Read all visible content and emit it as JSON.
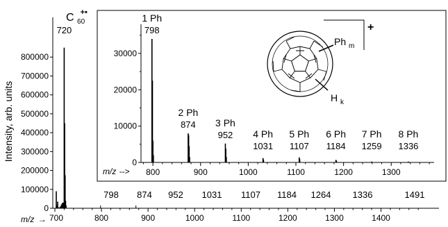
{
  "chart_data": [
    {
      "type": "bar",
      "name": "main",
      "ylabel": "Intensity, arb. units",
      "xlabel_prefix": "m/z",
      "xlabel_arrow": "→",
      "xlim": [
        700,
        1520
      ],
      "ylim": [
        0,
        900000
      ],
      "xticks": [
        700,
        800,
        900,
        1000,
        1100,
        1200,
        1300,
        1400
      ],
      "yticks": [
        0,
        100000,
        200000,
        300000,
        400000,
        500000,
        600000,
        700000,
        800000
      ],
      "main_label": {
        "base": "C",
        "sub": "60",
        "sup": "+•",
        "mass": "720"
      },
      "peak_labels": [
        "798",
        "874",
        "952",
        "1031",
        "1107",
        "1184",
        "1264",
        "1336",
        "1491"
      ],
      "peaks": [
        {
          "x": 703,
          "y": 90000
        },
        {
          "x": 705,
          "y": 15000
        },
        {
          "x": 706,
          "y": 35000
        },
        {
          "x": 709,
          "y": 5000
        },
        {
          "x": 712,
          "y": 10000
        },
        {
          "x": 714,
          "y": 20000
        },
        {
          "x": 716,
          "y": 28000
        },
        {
          "x": 718,
          "y": 30000
        },
        {
          "x": 720,
          "y": 850000
        },
        {
          "x": 721,
          "y": 450000
        },
        {
          "x": 722,
          "y": 175000
        },
        {
          "x": 723,
          "y": 40000
        },
        {
          "x": 724,
          "y": 15000
        }
      ]
    },
    {
      "type": "bar",
      "name": "inset",
      "xlabel_prefix": "m/z",
      "xlabel_arrow": "-->",
      "xlim": [
        775,
        1390
      ],
      "ylim": [
        0,
        38000
      ],
      "xticks": [
        800,
        900,
        1000,
        1100,
        1200,
        1300
      ],
      "yticks": [
        0,
        10000,
        20000,
        30000
      ],
      "groups": [
        {
          "label": "1 Ph",
          "mass": "798",
          "x": 798
        },
        {
          "label": "2 Ph",
          "mass": "874",
          "x": 874
        },
        {
          "label": "3 Ph",
          "mass": "952",
          "x": 952
        },
        {
          "label": "4 Ph",
          "mass": "1031",
          "x": 1031
        },
        {
          "label": "5 Ph",
          "mass": "1107",
          "x": 1107
        },
        {
          "label": "6 Ph",
          "mass": "1184",
          "x": 1184
        },
        {
          "label": "7 Ph",
          "mass": "1259",
          "x": 1259
        },
        {
          "label": "8 Ph",
          "mass": "1336",
          "x": 1336
        }
      ],
      "peaks": [
        {
          "x": 798,
          "y": 34000
        },
        {
          "x": 799,
          "y": 22500
        },
        {
          "x": 800,
          "y": 6000
        },
        {
          "x": 801,
          "y": 2000
        },
        {
          "x": 874,
          "y": 8000
        },
        {
          "x": 875,
          "y": 7500
        },
        {
          "x": 876,
          "y": 4500
        },
        {
          "x": 877,
          "y": 1500
        },
        {
          "x": 952,
          "y": 5200
        },
        {
          "x": 953,
          "y": 3800
        },
        {
          "x": 954,
          "y": 1500
        },
        {
          "x": 1031,
          "y": 1200
        },
        {
          "x": 1032,
          "y": 800
        },
        {
          "x": 1107,
          "y": 1400
        },
        {
          "x": 1108,
          "y": 900
        },
        {
          "x": 1184,
          "y": 700
        },
        {
          "x": 1185,
          "y": 500
        },
        {
          "x": 1259,
          "y": 250
        },
        {
          "x": 1336,
          "y": 250
        }
      ]
    }
  ],
  "structure": {
    "labels": {
      "phm_base": "Ph",
      "phm_sub": "m",
      "hk_base": "H",
      "hk_sub": "k",
      "charge": "+"
    }
  }
}
